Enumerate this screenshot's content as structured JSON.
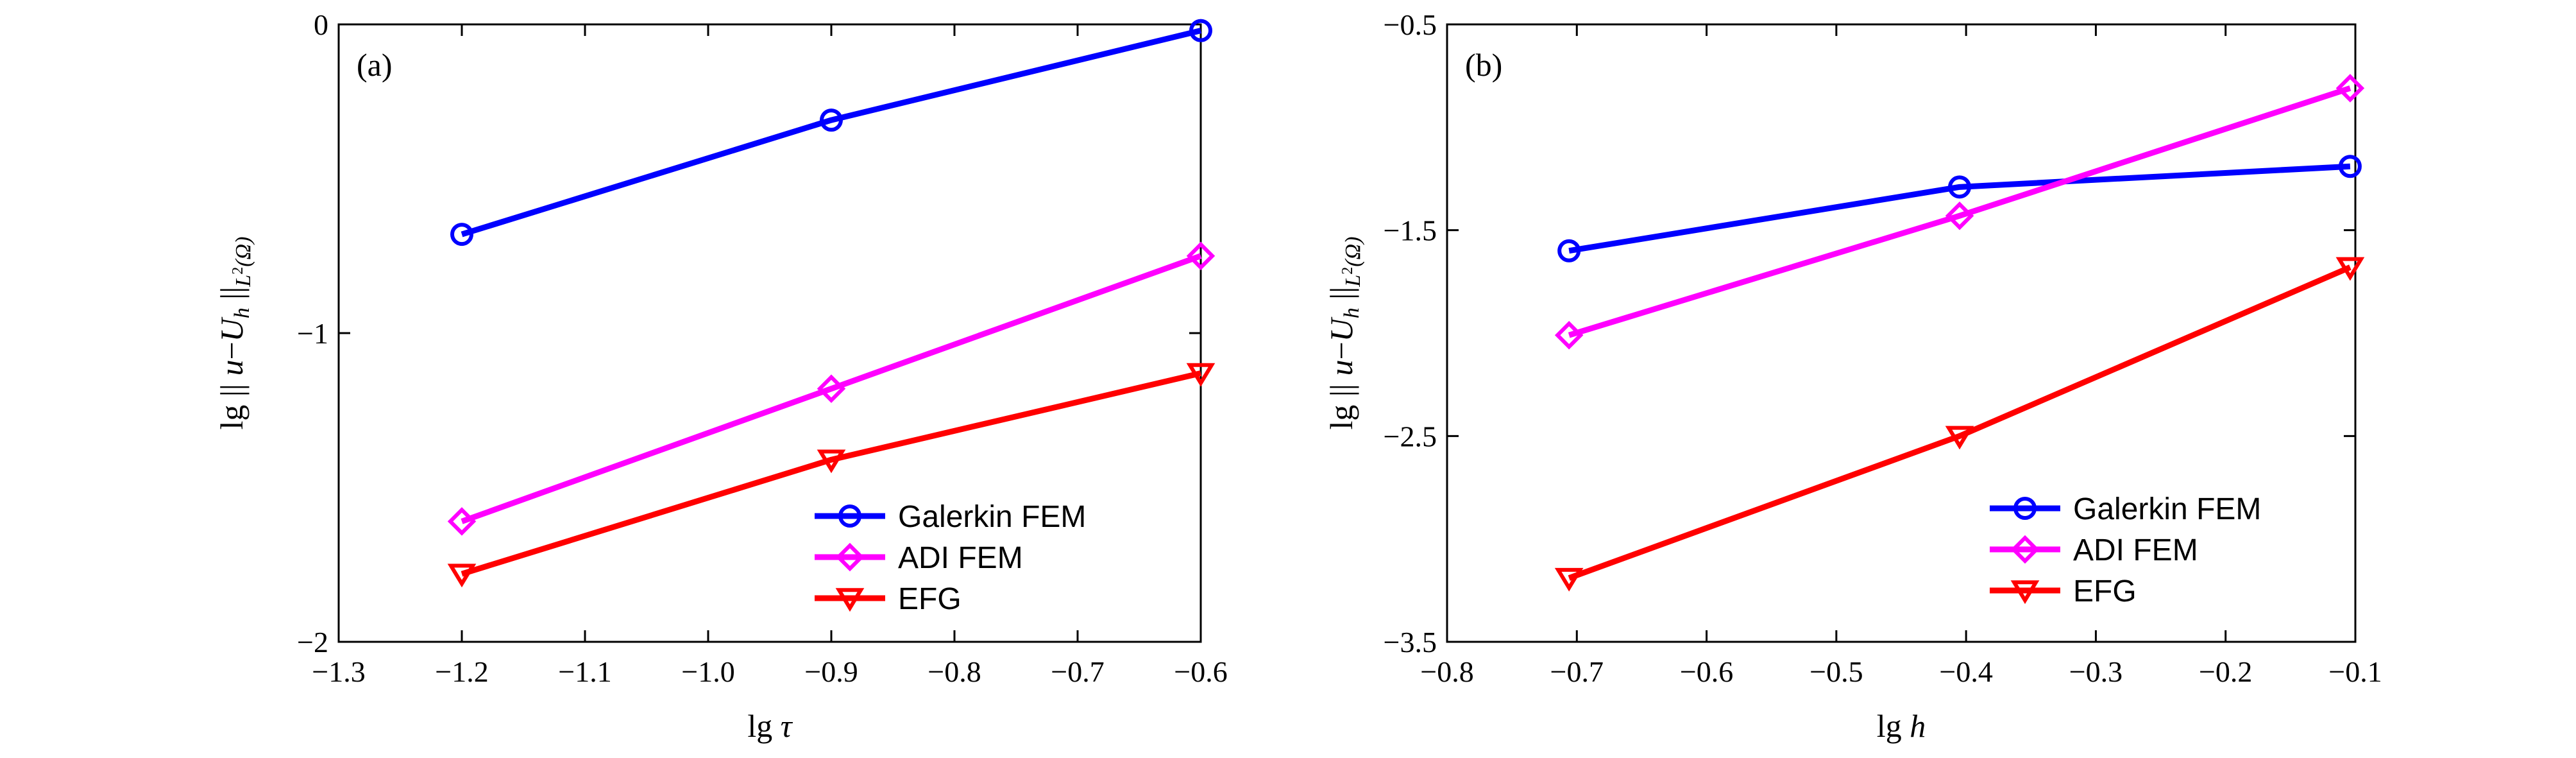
{
  "chart_data": [
    {
      "type": "line",
      "panel_label": "(a)",
      "xlabel": "lg τ",
      "ylabel": "lg || u−U_h ||_L2(Ω)",
      "xlim": [
        -1.3,
        -0.6
      ],
      "ylim": [
        -2,
        0
      ],
      "xticks": [
        -1.3,
        -1.2,
        -1.1,
        -1.0,
        -0.9,
        -0.8,
        -0.7,
        -0.6
      ],
      "xtick_labels": [
        "−1.3",
        "−1.2",
        "−1.1",
        "−1.0",
        "−0.9",
        "−0.8",
        "−0.7",
        "−0.6"
      ],
      "yticks": [
        -2,
        -1,
        0
      ],
      "ytick_labels": [
        "−2",
        "−1",
        "0"
      ],
      "legend_position": "bottom-right",
      "x": [
        -1.2,
        -0.9,
        -0.6
      ],
      "series": [
        {
          "name": "Galerkin FEM",
          "marker": "circle",
          "color": "#0000ff",
          "values": [
            -0.68,
            -0.31,
            -0.02
          ]
        },
        {
          "name": "ADI FEM",
          "marker": "diamond",
          "color": "#ff00ff",
          "values": [
            -1.61,
            -1.18,
            -0.75
          ]
        },
        {
          "name": "EFG",
          "marker": "triangle-down",
          "color": "#ff0000",
          "values": [
            -1.78,
            -1.41,
            -1.13
          ]
        }
      ]
    },
    {
      "type": "line",
      "panel_label": "(b)",
      "xlabel": "lg h",
      "ylabel": "lg || u−U_h ||_L2(Ω)",
      "xlim": [
        -0.8,
        -0.1
      ],
      "ylim": [
        -3.5,
        -0.5
      ],
      "xticks": [
        -0.8,
        -0.7,
        -0.6,
        -0.5,
        -0.4,
        -0.3,
        -0.2,
        -0.1
      ],
      "xtick_labels": [
        "−0.8",
        "−0.7",
        "−0.6",
        "−0.5",
        "−0.4",
        "−0.3",
        "−0.2",
        "−0.1"
      ],
      "yticks": [
        -3.5,
        -2.5,
        -1.5,
        -0.5
      ],
      "ytick_labels": [
        "−3.5",
        "−2.5",
        "−1.5",
        "−0.5"
      ],
      "legend_position": "bottom-right",
      "x": [
        -0.706,
        -0.405,
        -0.104
      ],
      "series": [
        {
          "name": "Galerkin FEM",
          "marker": "circle",
          "color": "#0000ff",
          "values": [
            -1.6,
            -1.29,
            -1.19
          ]
        },
        {
          "name": "ADI FEM",
          "marker": "diamond",
          "color": "#ff00ff",
          "values": [
            -2.01,
            -1.43,
            -0.81
          ]
        },
        {
          "name": "EFG",
          "marker": "triangle-down",
          "color": "#ff0000",
          "values": [
            -3.19,
            -2.5,
            -1.68
          ]
        }
      ]
    }
  ]
}
